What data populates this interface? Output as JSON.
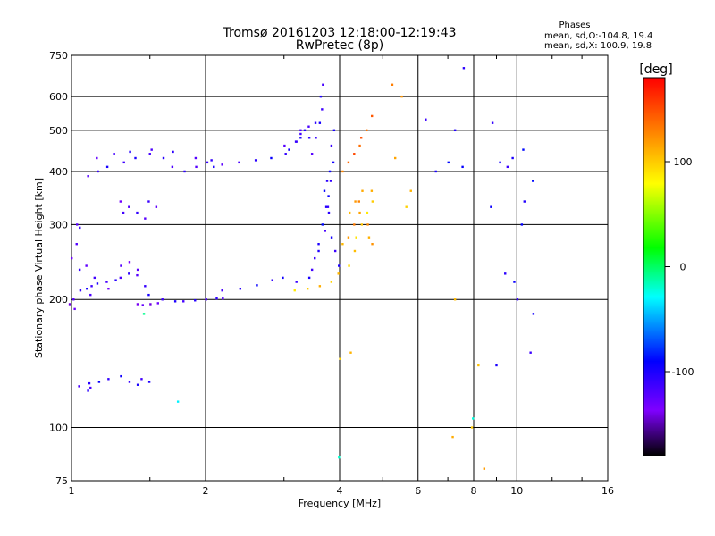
{
  "chart_data": {
    "type": "scatter",
    "title": "Tromsø 20161203 12:18:00-12:19:43",
    "subtitle": "RwPretec (8p)",
    "xlabel": "Frequency [MHz]",
    "ylabel": "Stationary phase Virtual Height [km]",
    "x_scale": "log",
    "y_scale": "log",
    "xlim": [
      1,
      16
    ],
    "ylim": [
      75,
      750
    ],
    "x_ticks": [
      "1",
      "2",
      "4",
      "6",
      "8",
      "10",
      "16"
    ],
    "y_ticks": [
      "75",
      "100",
      "200",
      "300",
      "400",
      "500",
      "600",
      "750"
    ],
    "grid": true,
    "phase_stats": {
      "heading": "Phases",
      "line1": "mean, sd,O:-104.8, 19.4",
      "line2": "mean, sd,X: 100.9, 19.8"
    },
    "colorbar": {
      "label": "[deg]",
      "range": [
        -180,
        180
      ],
      "ticks": [
        "100",
        "0",
        "-100"
      ],
      "colors": [
        "#ff0000",
        "#ff8000",
        "#ffff00",
        "#00ff00",
        "#00ffff",
        "#0000ff",
        "#7f00ff",
        "#000000"
      ]
    },
    "series": [
      {
        "phase": -110,
        "points": [
          [
            1.02,
            200
          ],
          [
            1.05,
            210
          ],
          [
            1.08,
            212
          ],
          [
            1.1,
            215
          ],
          [
            1.15,
            218
          ],
          [
            1.2,
            220
          ],
          [
            1.25,
            222
          ],
          [
            1.3,
            225
          ],
          [
            1.35,
            230
          ],
          [
            1.4,
            228
          ],
          [
            1.45,
            215
          ],
          [
            1.5,
            205
          ],
          [
            1.6,
            200
          ],
          [
            1.7,
            198
          ],
          [
            1.8,
            198
          ],
          [
            1.9,
            199
          ],
          [
            2.0,
            200
          ],
          [
            2.1,
            201
          ],
          [
            2.2,
            201
          ]
        ]
      },
      {
        "phase": -130,
        "points": [
          [
            1.0,
            195
          ],
          [
            1.02,
            190
          ],
          [
            1.1,
            205
          ],
          [
            1.2,
            212
          ],
          [
            1.3,
            240
          ],
          [
            1.35,
            245
          ],
          [
            1.4,
            235
          ],
          [
            1.42,
            195
          ],
          [
            1.45,
            194
          ],
          [
            1.5,
            195
          ],
          [
            1.55,
            196
          ]
        ]
      },
      {
        "phase": -120,
        "points": [
          [
            1.01,
            250
          ],
          [
            1.03,
            270
          ],
          [
            1.04,
            235
          ],
          [
            1.02,
            300
          ],
          [
            1.05,
            295
          ],
          [
            1.08,
            240
          ],
          [
            1.12,
            225
          ]
        ]
      },
      {
        "phase": -105,
        "points": [
          [
            2.2,
            210
          ],
          [
            2.4,
            212
          ],
          [
            2.6,
            216
          ],
          [
            2.8,
            222
          ],
          [
            3.0,
            225
          ],
          [
            3.2,
            220
          ],
          [
            3.4,
            225
          ],
          [
            3.5,
            235
          ],
          [
            3.6,
            260
          ],
          [
            3.7,
            290
          ],
          [
            3.75,
            320
          ],
          [
            3.8,
            350
          ],
          [
            3.82,
            380
          ],
          [
            3.85,
            420
          ],
          [
            3.87,
            460
          ],
          [
            3.9,
            500
          ]
        ]
      },
      {
        "phase": -100,
        "points": [
          [
            3.55,
            250
          ],
          [
            3.6,
            270
          ],
          [
            3.65,
            300
          ],
          [
            3.7,
            330
          ],
          [
            3.72,
            360
          ],
          [
            3.75,
            380
          ],
          [
            3.78,
            400
          ],
          [
            3.8,
            330
          ],
          [
            3.85,
            280
          ],
          [
            3.9,
            260
          ],
          [
            3.95,
            240
          ]
        ]
      },
      {
        "phase": -110,
        "points": [
          [
            3.5,
            440
          ],
          [
            3.55,
            480
          ],
          [
            3.6,
            520
          ],
          [
            3.62,
            560
          ],
          [
            3.65,
            600
          ],
          [
            3.67,
            640
          ],
          [
            3.4,
            480
          ],
          [
            3.3,
            500
          ],
          [
            3.2,
            470
          ],
          [
            3.0,
            460
          ]
        ]
      },
      {
        "phase": -110,
        "points": [
          [
            1.1,
            390
          ],
          [
            1.15,
            400
          ],
          [
            1.2,
            410
          ],
          [
            1.3,
            420
          ],
          [
            1.4,
            430
          ],
          [
            1.5,
            440
          ],
          [
            1.6,
            430
          ],
          [
            1.7,
            410
          ],
          [
            1.8,
            400
          ],
          [
            1.9,
            410
          ],
          [
            2.0,
            420
          ],
          [
            2.1,
            410
          ]
        ]
      },
      {
        "phase": -115,
        "points": [
          [
            1.15,
            430
          ],
          [
            1.25,
            440
          ],
          [
            1.35,
            445
          ],
          [
            1.5,
            450
          ],
          [
            1.7,
            445
          ],
          [
            1.9,
            430
          ],
          [
            2.05,
            425
          ],
          [
            2.2,
            415
          ]
        ]
      },
      {
        "phase": -105,
        "points": [
          [
            2.4,
            420
          ],
          [
            2.6,
            425
          ],
          [
            2.8,
            430
          ],
          [
            3.0,
            440
          ],
          [
            3.1,
            450
          ],
          [
            3.2,
            470
          ],
          [
            3.25,
            480
          ],
          [
            3.3,
            490
          ],
          [
            3.35,
            500
          ],
          [
            3.4,
            510
          ],
          [
            3.5,
            520
          ]
        ]
      },
      {
        "phase": -120,
        "points": [
          [
            1.3,
            340
          ],
          [
            1.35,
            330
          ],
          [
            1.4,
            320
          ],
          [
            1.45,
            310
          ],
          [
            1.5,
            340
          ],
          [
            1.55,
            330
          ],
          [
            1.3,
            320
          ]
        ]
      },
      {
        "phase": -105,
        "points": [
          [
            1.05,
            125
          ],
          [
            1.1,
            127
          ],
          [
            1.15,
            128
          ],
          [
            1.2,
            130
          ],
          [
            1.3,
            132
          ],
          [
            1.35,
            128
          ],
          [
            1.4,
            126
          ],
          [
            1.45,
            130
          ],
          [
            1.5,
            128
          ],
          [
            1.1,
            124
          ],
          [
            1.08,
            122
          ]
        ]
      },
      {
        "phase": 100,
        "points": [
          [
            3.2,
            210
          ],
          [
            3.4,
            212
          ],
          [
            3.6,
            215
          ],
          [
            3.8,
            220
          ],
          [
            4.0,
            230
          ],
          [
            4.2,
            240
          ],
          [
            4.3,
            260
          ],
          [
            4.4,
            280
          ],
          [
            4.5,
            300
          ],
          [
            4.6,
            320
          ],
          [
            4.7,
            340
          ],
          [
            4.75,
            360
          ]
        ]
      },
      {
        "phase": 120,
        "points": [
          [
            4.1,
            270
          ],
          [
            4.2,
            280
          ],
          [
            4.3,
            300
          ],
          [
            4.4,
            320
          ],
          [
            4.45,
            340
          ],
          [
            4.5,
            360
          ],
          [
            4.6,
            300
          ],
          [
            4.7,
            280
          ],
          [
            4.75,
            270
          ],
          [
            4.2,
            320
          ],
          [
            4.3,
            340
          ]
        ]
      },
      {
        "phase": 140,
        "points": [
          [
            4.1,
            400
          ],
          [
            4.2,
            420
          ],
          [
            4.3,
            440
          ],
          [
            4.4,
            460
          ],
          [
            4.5,
            480
          ],
          [
            4.6,
            500
          ],
          [
            4.7,
            540
          ],
          [
            5.3,
            640
          ]
        ]
      },
      {
        "phase": -100,
        "points": [
          [
            6.3,
            530
          ],
          [
            6.6,
            400
          ],
          [
            7.0,
            420
          ],
          [
            7.2,
            500
          ],
          [
            7.6,
            410
          ],
          [
            7.6,
            700
          ],
          [
            8.7,
            330
          ],
          [
            8.9,
            520
          ],
          [
            9.2,
            420
          ],
          [
            9.5,
            410
          ],
          [
            9.7,
            430
          ],
          [
            10.4,
            450
          ],
          [
            10.4,
            340
          ],
          [
            10.2,
            300
          ],
          [
            9.5,
            230
          ],
          [
            9.9,
            220
          ],
          [
            10.0,
            200
          ],
          [
            10.8,
            185
          ],
          [
            10.8,
            150
          ],
          [
            9.0,
            140
          ],
          [
            10.8,
            380
          ]
        ]
      },
      {
        "phase": 110,
        "points": [
          [
            5.7,
            330
          ],
          [
            5.8,
            360
          ],
          [
            5.5,
            600
          ],
          [
            7.2,
            200
          ],
          [
            8.5,
            80
          ],
          [
            8.2,
            140
          ],
          [
            5.3,
            430
          ],
          [
            8.0,
            100
          ],
          [
            7.2,
            95
          ],
          [
            4.0,
            145
          ],
          [
            4.2,
            150
          ]
        ]
      },
      {
        "phase": -20,
        "points": [
          [
            1.75,
            115
          ],
          [
            4.0,
            85
          ],
          [
            1.45,
            185
          ],
          [
            7.9,
            105
          ]
        ]
      }
    ]
  }
}
